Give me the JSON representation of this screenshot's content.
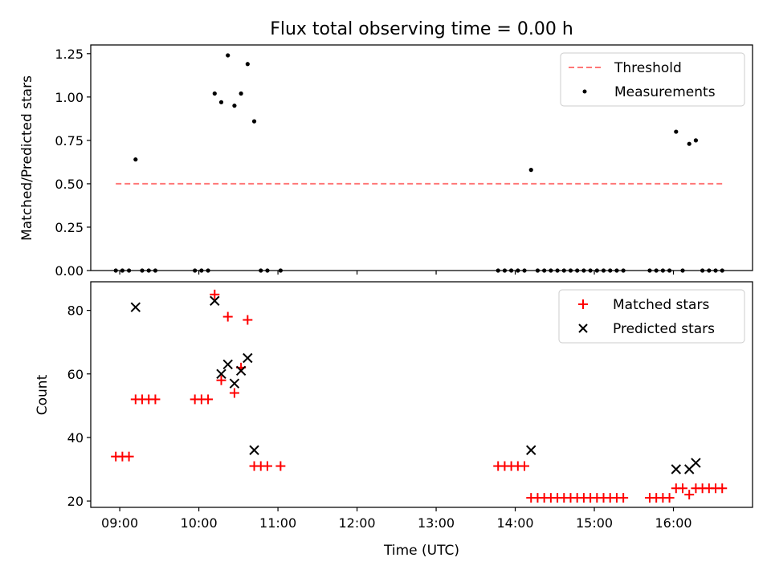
{
  "chart_data": [
    {
      "type": "scatter",
      "title": "Flux total observing time = 0.00 h",
      "ylabel": "Matched/Predicted stars",
      "xlabel": "",
      "xlim": [
        "08:38",
        "17:00"
      ],
      "ylim": [
        0,
        1.3
      ],
      "yticks": [
        0.0,
        0.25,
        0.5,
        0.75,
        1.0,
        1.25
      ],
      "ytick_labels": [
        "0.00",
        "0.25",
        "0.50",
        "0.75",
        "1.00",
        "1.25"
      ],
      "legend_position": "top-right",
      "series": [
        {
          "name": "Threshold",
          "kind": "dashed-line",
          "color": "#ff7777",
          "points": [
            [
              "08:57",
              0.5
            ],
            [
              "16:38",
              0.5
            ]
          ]
        },
        {
          "name": "Measurements",
          "kind": "dot",
          "color": "#000000",
          "points": [
            [
              "08:57",
              0
            ],
            [
              "09:02",
              0
            ],
            [
              "09:07",
              0
            ],
            [
              "09:12",
              0.64
            ],
            [
              "09:17",
              0
            ],
            [
              "09:22",
              0
            ],
            [
              "09:27",
              0
            ],
            [
              "09:57",
              0
            ],
            [
              "10:02",
              0
            ],
            [
              "10:07",
              0
            ],
            [
              "10:12",
              1.02
            ],
            [
              "10:17",
              0.97
            ],
            [
              "10:22",
              1.24
            ],
            [
              "10:27",
              0.95
            ],
            [
              "10:32",
              1.02
            ],
            [
              "10:37",
              1.19
            ],
            [
              "10:42",
              0.86
            ],
            [
              "10:47",
              0
            ],
            [
              "10:52",
              0
            ],
            [
              "11:02",
              0
            ],
            [
              "13:47",
              0
            ],
            [
              "13:52",
              0
            ],
            [
              "13:57",
              0
            ],
            [
              "14:02",
              0
            ],
            [
              "14:07",
              0
            ],
            [
              "14:12",
              0.58
            ],
            [
              "14:17",
              0
            ],
            [
              "14:22",
              0
            ],
            [
              "14:27",
              0
            ],
            [
              "14:32",
              0
            ],
            [
              "14:37",
              0
            ],
            [
              "14:42",
              0
            ],
            [
              "14:47",
              0
            ],
            [
              "14:52",
              0
            ],
            [
              "14:57",
              0
            ],
            [
              "15:02",
              0
            ],
            [
              "15:07",
              0
            ],
            [
              "15:12",
              0
            ],
            [
              "15:17",
              0
            ],
            [
              "15:22",
              0
            ],
            [
              "15:42",
              0
            ],
            [
              "15:47",
              0
            ],
            [
              "15:52",
              0
            ],
            [
              "15:57",
              0
            ],
            [
              "16:02",
              0.8
            ],
            [
              "16:07",
              0
            ],
            [
              "16:12",
              0.73
            ],
            [
              "16:17",
              0.75
            ],
            [
              "16:22",
              0
            ],
            [
              "16:27",
              0
            ],
            [
              "16:32",
              0
            ],
            [
              "16:37",
              0
            ]
          ]
        }
      ]
    },
    {
      "type": "scatter",
      "title": "",
      "ylabel": "Count",
      "xlabel": "Time (UTC)",
      "xlim": [
        "08:38",
        "17:00"
      ],
      "ylim": [
        18,
        89
      ],
      "yticks": [
        20,
        40,
        60,
        80
      ],
      "ytick_labels": [
        "20",
        "40",
        "60",
        "80"
      ],
      "xticks": [
        "09:00",
        "10:00",
        "11:00",
        "12:00",
        "13:00",
        "14:00",
        "15:00",
        "16:00"
      ],
      "xtick_labels": [
        "09:00",
        "10:00",
        "11:00",
        "12:00",
        "13:00",
        "14:00",
        "15:00",
        "16:00"
      ],
      "legend_position": "top-right",
      "series": [
        {
          "name": "Matched stars",
          "kind": "plus",
          "color": "#ff0000",
          "points": [
            [
              "08:57",
              34
            ],
            [
              "09:02",
              34
            ],
            [
              "09:07",
              34
            ],
            [
              "09:12",
              52
            ],
            [
              "09:17",
              52
            ],
            [
              "09:22",
              52
            ],
            [
              "09:27",
              52
            ],
            [
              "09:57",
              52
            ],
            [
              "10:02",
              52
            ],
            [
              "10:07",
              52
            ],
            [
              "10:12",
              85
            ],
            [
              "10:17",
              58
            ],
            [
              "10:22",
              78
            ],
            [
              "10:27",
              54
            ],
            [
              "10:32",
              62
            ],
            [
              "10:37",
              77
            ],
            [
              "10:42",
              31
            ],
            [
              "10:47",
              31
            ],
            [
              "10:52",
              31
            ],
            [
              "11:02",
              31
            ],
            [
              "13:47",
              31
            ],
            [
              "13:52",
              31
            ],
            [
              "13:57",
              31
            ],
            [
              "14:02",
              31
            ],
            [
              "14:07",
              31
            ],
            [
              "14:12",
              21
            ],
            [
              "14:17",
              21
            ],
            [
              "14:22",
              21
            ],
            [
              "14:27",
              21
            ],
            [
              "14:32",
              21
            ],
            [
              "14:37",
              21
            ],
            [
              "14:42",
              21
            ],
            [
              "14:47",
              21
            ],
            [
              "14:52",
              21
            ],
            [
              "14:57",
              21
            ],
            [
              "15:02",
              21
            ],
            [
              "15:07",
              21
            ],
            [
              "15:12",
              21
            ],
            [
              "15:17",
              21
            ],
            [
              "15:22",
              21
            ],
            [
              "15:42",
              21
            ],
            [
              "15:47",
              21
            ],
            [
              "15:52",
              21
            ],
            [
              "15:57",
              21
            ],
            [
              "16:02",
              24
            ],
            [
              "16:07",
              24
            ],
            [
              "16:12",
              22
            ],
            [
              "16:17",
              24
            ],
            [
              "16:22",
              24
            ],
            [
              "16:27",
              24
            ],
            [
              "16:32",
              24
            ],
            [
              "16:37",
              24
            ]
          ]
        },
        {
          "name": "Predicted stars",
          "kind": "x",
          "color": "#000000",
          "points": [
            [
              "09:12",
              81
            ],
            [
              "10:12",
              83
            ],
            [
              "10:17",
              60
            ],
            [
              "10:22",
              63
            ],
            [
              "10:27",
              57
            ],
            [
              "10:32",
              61
            ],
            [
              "10:37",
              65
            ],
            [
              "10:42",
              36
            ],
            [
              "14:12",
              36
            ],
            [
              "16:02",
              30
            ],
            [
              "16:12",
              30
            ],
            [
              "16:17",
              32
            ]
          ]
        }
      ]
    }
  ]
}
